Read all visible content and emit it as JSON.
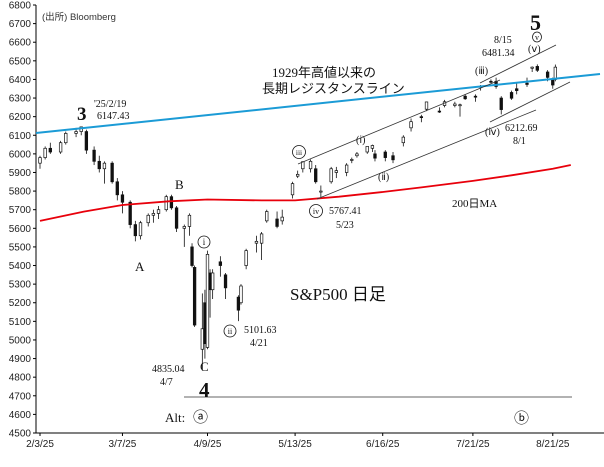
{
  "chart_data": {
    "type": "candlestick",
    "title": "S&P500 日足",
    "source": "(出所) Bloomberg",
    "ylim": [
      4500,
      6800
    ],
    "y_ticks": [
      4500,
      4600,
      4700,
      4800,
      4900,
      5000,
      5100,
      5200,
      5300,
      5400,
      5500,
      5600,
      5700,
      5800,
      5900,
      6000,
      6100,
      6200,
      6300,
      6400,
      6500,
      6600,
      6700,
      6800
    ],
    "x_tick_labels": [
      "2/3/25",
      "3/7/25",
      "4/9/25",
      "5/13/25",
      "6/16/25",
      "7/21/25",
      "8/21/25"
    ],
    "grid": false,
    "candles": [
      {
        "date": "2025-02-03",
        "o": 5950,
        "h": 5990,
        "l": 5920,
        "c": 5980
      },
      {
        "date": "2025-02-05",
        "o": 5980,
        "h": 6040,
        "l": 5970,
        "c": 6030
      },
      {
        "date": "2025-02-07",
        "o": 6030,
        "h": 6060,
        "l": 6000,
        "c": 6010
      },
      {
        "date": "2025-02-11",
        "o": 6010,
        "h": 6070,
        "l": 6000,
        "c": 6060
      },
      {
        "date": "2025-02-13",
        "o": 6060,
        "h": 6120,
        "l": 6050,
        "c": 6110
      },
      {
        "date": "2025-02-17",
        "o": 6110,
        "h": 6140,
        "l": 6090,
        "c": 6120
      },
      {
        "date": "2025-02-19",
        "o": 6120,
        "h": 6147,
        "l": 6100,
        "c": 6145
      },
      {
        "date": "2025-02-21",
        "o": 6120,
        "h": 6130,
        "l": 6000,
        "c": 6020
      },
      {
        "date": "2025-02-24",
        "o": 6020,
        "h": 6040,
        "l": 5940,
        "c": 5960
      },
      {
        "date": "2025-02-26",
        "o": 5960,
        "h": 5990,
        "l": 5900,
        "c": 5920
      },
      {
        "date": "2025-02-28",
        "o": 5920,
        "h": 5960,
        "l": 5840,
        "c": 5950
      },
      {
        "date": "2025-03-03",
        "o": 5950,
        "h": 5960,
        "l": 5840,
        "c": 5850
      },
      {
        "date": "2025-03-05",
        "o": 5850,
        "h": 5870,
        "l": 5750,
        "c": 5780
      },
      {
        "date": "2025-03-07",
        "o": 5780,
        "h": 5800,
        "l": 5680,
        "c": 5740
      },
      {
        "date": "2025-03-10",
        "o": 5740,
        "h": 5750,
        "l": 5600,
        "c": 5620
      },
      {
        "date": "2025-03-12",
        "o": 5620,
        "h": 5640,
        "l": 5530,
        "c": 5560
      },
      {
        "date": "2025-03-14",
        "o": 5560,
        "h": 5640,
        "l": 5540,
        "c": 5630
      },
      {
        "date": "2025-03-17",
        "o": 5630,
        "h": 5680,
        "l": 5610,
        "c": 5670
      },
      {
        "date": "2025-03-19",
        "o": 5670,
        "h": 5700,
        "l": 5630,
        "c": 5680
      },
      {
        "date": "2025-03-21",
        "o": 5680,
        "h": 5720,
        "l": 5650,
        "c": 5700
      },
      {
        "date": "2025-03-24",
        "o": 5700,
        "h": 5780,
        "l": 5690,
        "c": 5770
      },
      {
        "date": "2025-03-26",
        "o": 5770,
        "h": 5780,
        "l": 5700,
        "c": 5710
      },
      {
        "date": "2025-03-28",
        "o": 5710,
        "h": 5720,
        "l": 5580,
        "c": 5600
      },
      {
        "date": "2025-03-31",
        "o": 5600,
        "h": 5620,
        "l": 5500,
        "c": 5610
      },
      {
        "date": "2025-04-02",
        "o": 5610,
        "h": 5680,
        "l": 5560,
        "c": 5670
      },
      {
        "date": "2025-04-03",
        "o": 5500,
        "h": 5520,
        "l": 5390,
        "c": 5400
      },
      {
        "date": "2025-04-04",
        "o": 5390,
        "h": 5400,
        "l": 5070,
        "c": 5080
      },
      {
        "date": "2025-04-07",
        "o": 4950,
        "h": 5250,
        "l": 4835,
        "c": 5060
      },
      {
        "date": "2025-04-08",
        "o": 5200,
        "h": 5270,
        "l": 4900,
        "c": 4980
      },
      {
        "date": "2025-04-09",
        "o": 4960,
        "h": 5480,
        "l": 4950,
        "c": 5460
      },
      {
        "date": "2025-04-10",
        "o": 5360,
        "h": 5380,
        "l": 5120,
        "c": 5270
      },
      {
        "date": "2025-04-11",
        "o": 5270,
        "h": 5380,
        "l": 5220,
        "c": 5360
      },
      {
        "date": "2025-04-14",
        "o": 5420,
        "h": 5450,
        "l": 5340,
        "c": 5400
      },
      {
        "date": "2025-04-16",
        "o": 5350,
        "h": 5360,
        "l": 5220,
        "c": 5280
      },
      {
        "date": "2025-04-21",
        "o": 5230,
        "h": 5240,
        "l": 5101,
        "c": 5160
      },
      {
        "date": "2025-04-22",
        "o": 5200,
        "h": 5300,
        "l": 5190,
        "c": 5290
      },
      {
        "date": "2025-04-24",
        "o": 5400,
        "h": 5490,
        "l": 5380,
        "c": 5480
      },
      {
        "date": "2025-04-28",
        "o": 5520,
        "h": 5560,
        "l": 5470,
        "c": 5530
      },
      {
        "date": "2025-04-30",
        "o": 5520,
        "h": 5580,
        "l": 5430,
        "c": 5570
      },
      {
        "date": "2025-05-02",
        "o": 5640,
        "h": 5700,
        "l": 5630,
        "c": 5690
      },
      {
        "date": "2025-05-06",
        "o": 5650,
        "h": 5690,
        "l": 5600,
        "c": 5610
      },
      {
        "date": "2025-05-08",
        "o": 5640,
        "h": 5700,
        "l": 5620,
        "c": 5660
      },
      {
        "date": "2025-05-12",
        "o": 5780,
        "h": 5850,
        "l": 5760,
        "c": 5840
      },
      {
        "date": "2025-05-14",
        "o": 5880,
        "h": 5910,
        "l": 5870,
        "c": 5890
      },
      {
        "date": "2025-05-16",
        "o": 5920,
        "h": 5960,
        "l": 5900,
        "c": 5958
      },
      {
        "date": "2025-05-19",
        "o": 5920,
        "h": 5970,
        "l": 5900,
        "c": 5960
      },
      {
        "date": "2025-05-21",
        "o": 5920,
        "h": 5940,
        "l": 5840,
        "c": 5850
      },
      {
        "date": "2025-05-23",
        "o": 5800,
        "h": 5830,
        "l": 5767,
        "c": 5800
      },
      {
        "date": "2025-05-27",
        "o": 5850,
        "h": 5930,
        "l": 5840,
        "c": 5920
      },
      {
        "date": "2025-05-29",
        "o": 5900,
        "h": 5930,
        "l": 5870,
        "c": 5910
      },
      {
        "date": "2025-06-02",
        "o": 5900,
        "h": 5950,
        "l": 5880,
        "c": 5940
      },
      {
        "date": "2025-06-04",
        "o": 5970,
        "h": 5980,
        "l": 5950,
        "c": 5970
      },
      {
        "date": "2025-06-06",
        "o": 5990,
        "h": 6010,
        "l": 5980,
        "c": 6000
      },
      {
        "date": "2025-06-10",
        "o": 6010,
        "h": 6040,
        "l": 6000,
        "c": 6040
      },
      {
        "date": "2025-06-12",
        "o": 6030,
        "h": 6050,
        "l": 6010,
        "c": 6045
      },
      {
        "date": "2025-06-13",
        "o": 6000,
        "h": 6020,
        "l": 5960,
        "c": 5977
      },
      {
        "date": "2025-06-17",
        "o": 6010,
        "h": 6020,
        "l": 5960,
        "c": 5980
      },
      {
        "date": "2025-06-20",
        "o": 5990,
        "h": 6010,
        "l": 5950,
        "c": 5968
      },
      {
        "date": "2025-06-24",
        "o": 6060,
        "h": 6100,
        "l": 6040,
        "c": 6090
      },
      {
        "date": "2025-06-27",
        "o": 6140,
        "h": 6190,
        "l": 6120,
        "c": 6173
      },
      {
        "date": "2025-07-01",
        "o": 6200,
        "h": 6210,
        "l": 6170,
        "c": 6198
      },
      {
        "date": "2025-07-03",
        "o": 6240,
        "h": 6280,
        "l": 6230,
        "c": 6279
      },
      {
        "date": "2025-07-08",
        "o": 6230,
        "h": 6250,
        "l": 6220,
        "c": 6225
      },
      {
        "date": "2025-07-10",
        "o": 6260,
        "h": 6290,
        "l": 6250,
        "c": 6280
      },
      {
        "date": "2025-07-14",
        "o": 6260,
        "h": 6280,
        "l": 6250,
        "c": 6268
      },
      {
        "date": "2025-07-16",
        "o": 6260,
        "h": 6270,
        "l": 6200,
        "c": 6264
      },
      {
        "date": "2025-07-18",
        "o": 6310,
        "h": 6320,
        "l": 6290,
        "c": 6296
      },
      {
        "date": "2025-07-22",
        "o": 6310,
        "h": 6320,
        "l": 6280,
        "c": 6309
      },
      {
        "date": "2025-07-24",
        "o": 6360,
        "h": 6370,
        "l": 6340,
        "c": 6363
      },
      {
        "date": "2025-07-28",
        "o": 6390,
        "h": 6400,
        "l": 6380,
        "c": 6389
      },
      {
        "date": "2025-07-30",
        "o": 6390,
        "h": 6410,
        "l": 6350,
        "c": 6362
      },
      {
        "date": "2025-08-01",
        "o": 6300,
        "h": 6310,
        "l": 6212,
        "c": 6238
      },
      {
        "date": "2025-08-05",
        "o": 6330,
        "h": 6340,
        "l": 6290,
        "c": 6299
      },
      {
        "date": "2025-08-07",
        "o": 6350,
        "h": 6380,
        "l": 6320,
        "c": 6340
      },
      {
        "date": "2025-08-11",
        "o": 6380,
        "h": 6410,
        "l": 6360,
        "c": 6373
      },
      {
        "date": "2025-08-13",
        "o": 6460,
        "h": 6470,
        "l": 6440,
        "c": 6466
      },
      {
        "date": "2025-08-15",
        "o": 6470,
        "h": 6481,
        "l": 6440,
        "c": 6449
      },
      {
        "date": "2025-08-19",
        "o": 6440,
        "h": 6450,
        "l": 6390,
        "c": 6411
      },
      {
        "date": "2025-08-21",
        "o": 6400,
        "h": 6410,
        "l": 6350,
        "c": 6370
      },
      {
        "date": "2025-08-22",
        "o": 6400,
        "h": 6480,
        "l": 6390,
        "c": 6466
      }
    ],
    "series": [
      {
        "name": "200日MA",
        "color": "#e8000b"
      },
      {
        "name": "1929年高値以来の長期レジスタンスライン",
        "color": "#1b9bd6"
      }
    ],
    "annotations": {
      "wave3_label": "3",
      "wave3_date": "'25/2/19",
      "wave3_value": "6147.43",
      "wave4_label": "4",
      "wave4_value": "4835.04",
      "wave4_date": "4/7",
      "wave5_label": "5",
      "wave5_date": "8/15",
      "wave5_value": "6481.34",
      "A": "A",
      "B": "B",
      "C": "C",
      "i": "i",
      "ii": "ii",
      "ii_value": "5101.63",
      "ii_date": "4/21",
      "iii": "iii",
      "iv": "iv",
      "iv_value": "5767.41",
      "iv_date": "5/23",
      "sub_i": "(ⅰ)",
      "sub_ii": "(ⅱ)",
      "sub_iii": "(ⅲ)",
      "sub_iv": "(ⅳ)",
      "sub_v": "(ⅴ)",
      "sub_v2": "v",
      "sub_iv_value": "6212.69",
      "sub_iv_date": "8/1",
      "resistance_line1": "1929年高値以来の",
      "resistance_line2": "長期レジスタンスライン",
      "ma_label": "200日MA",
      "alt_label": "Alt:",
      "alt_a": "ⓐ",
      "alt_b": "ⓑ"
    },
    "colors": {
      "up": "#ffffff",
      "down": "#111111",
      "ma": "#e8000b",
      "resistance": "#1b9bd6",
      "channel": "#333333"
    }
  }
}
